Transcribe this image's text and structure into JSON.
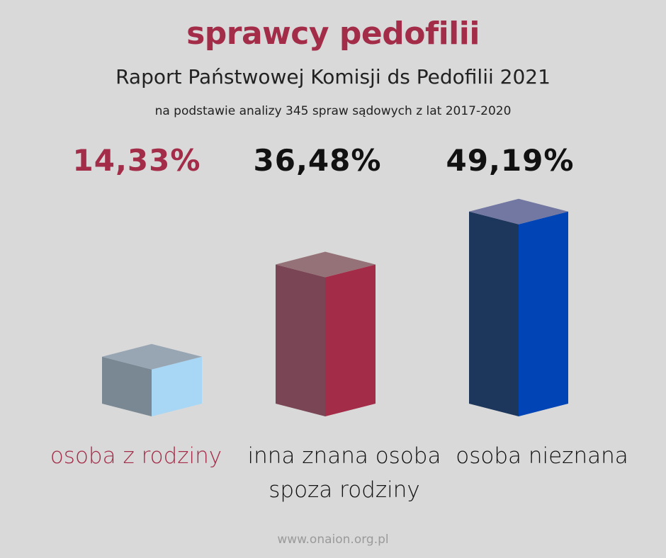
{
  "title": "sprawcy pedofilii",
  "subtitle": "Raport Państwowej Komisji ds Pedofilii 2021",
  "note": "na podstawie analizy 345 spraw sądowych z lat 2017-2020",
  "footer": "www.onaion.org.pl",
  "chart_data": {
    "type": "bar",
    "title": "sprawcy pedofilii",
    "categories": [
      "osoba z rodziny",
      "inna znana osoba spoza rodziny",
      "osoba nieznana"
    ],
    "category_lines": [
      [
        "osoba z rodziny"
      ],
      [
        "inna znana osoba",
        "spoza rodziny"
      ],
      [
        "osoba nieznana"
      ]
    ],
    "values": [
      14.33,
      36.48,
      49.19
    ],
    "value_labels": [
      "14,33%",
      "36,48%",
      "49,19%"
    ],
    "unit": "%",
    "ylim": [
      0,
      50
    ],
    "colors": {
      "bar_1": {
        "top": "#98a6b4",
        "left": "#7a8893",
        "right": "#a8d7f5"
      },
      "bar_2": {
        "top": "#947277",
        "left": "#7a4554",
        "right": "#a32c48"
      },
      "bar_3": {
        "top": "#7278a2",
        "left": "#1c365c",
        "right": "#0044b5"
      },
      "value_label_1": "#a32c48",
      "category_label_1": "#a32c48",
      "default_text": "#111111",
      "title": "#a32c48"
    }
  }
}
